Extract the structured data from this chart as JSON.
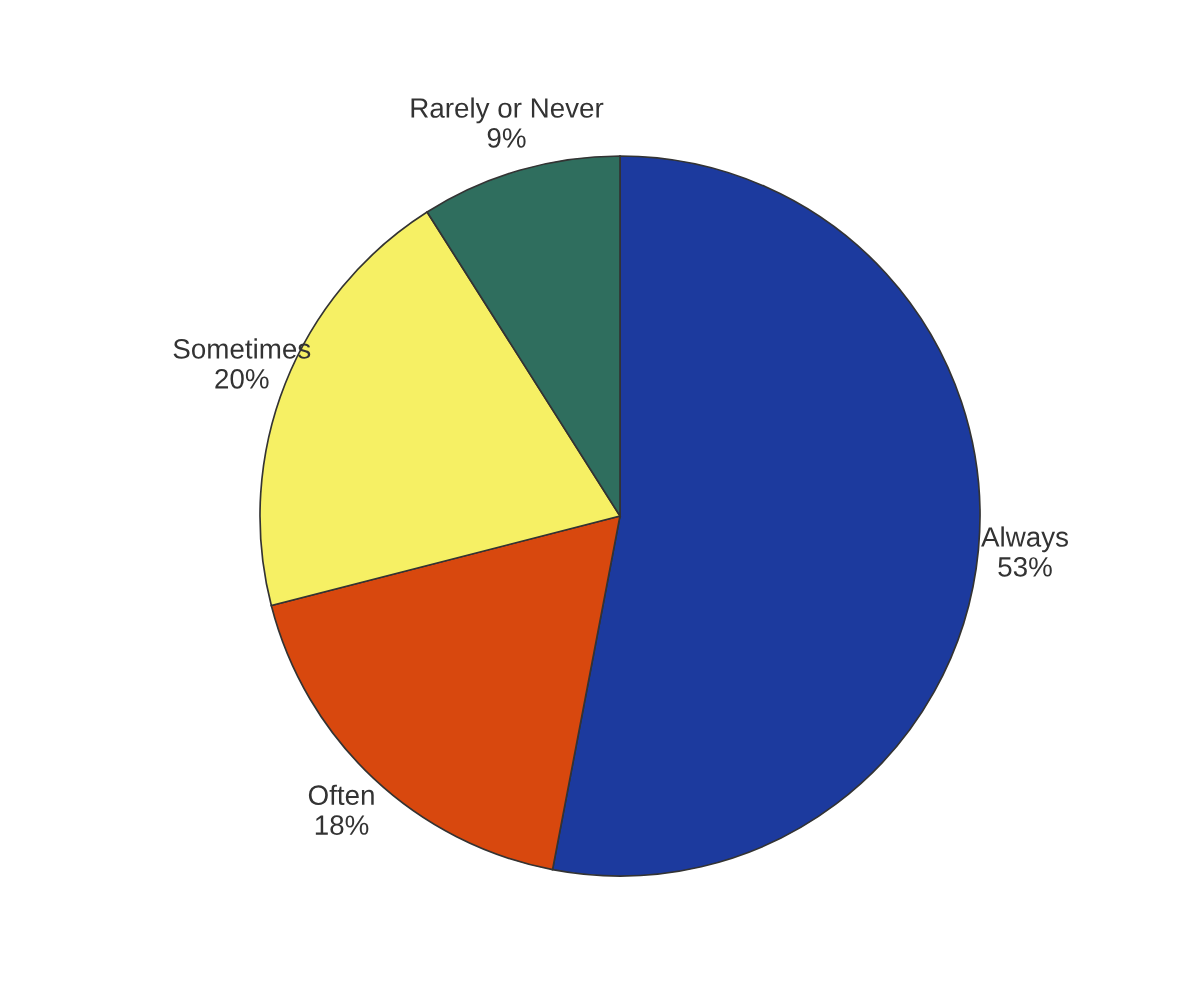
{
  "chart_data": {
    "type": "pie",
    "categories": [
      "Always",
      "Often",
      "Sometimes",
      "Rarely or Never"
    ],
    "values": [
      53,
      18,
      20,
      9
    ],
    "value_labels": [
      "53%",
      "18%",
      "20%",
      "9%"
    ],
    "colors": [
      "#1c3a9e",
      "#d8480e",
      "#f6f064",
      "#2f6e5e"
    ]
  }
}
